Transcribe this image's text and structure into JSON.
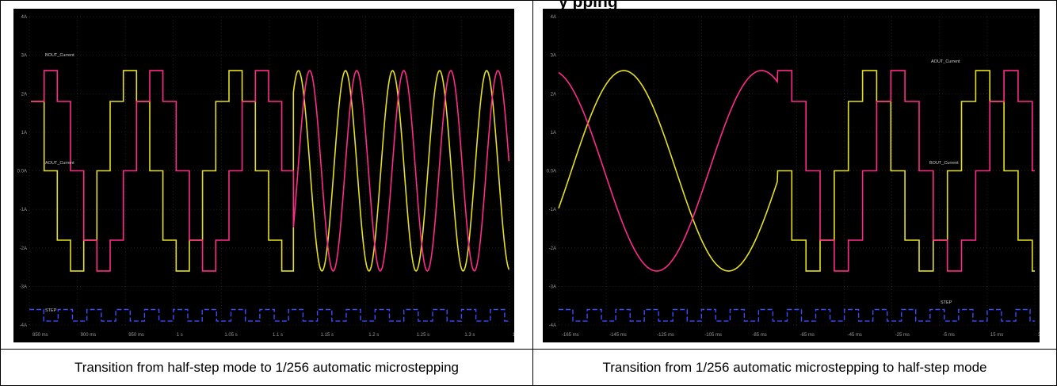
{
  "header_partial": "y                       pping",
  "panels": [
    {
      "id": "left",
      "caption": "Transition from half-step mode to 1/256 automatic microstepping",
      "y_ticks": [
        "4A",
        "3A",
        "2A",
        "1A",
        "0.0A",
        "-1A",
        "-2A",
        "-3A",
        "-4A"
      ],
      "x_ticks": [
        "850 ms",
        "900 ms",
        "950 ms",
        "1 s",
        "1.05 s",
        "1.1 s",
        "1.15 s",
        "1.2 s",
        "1.25 s",
        "1.3 s",
        "1.35 s"
      ],
      "trace_labels": {
        "b": "BOUT_Current",
        "a": "AOUT_Current",
        "step": "STEP"
      },
      "colors": {
        "pink": "#ff2a8a",
        "yellow": "#e6e01e",
        "blue": "#3a4cff",
        "grid": "#3a3a3a"
      }
    },
    {
      "id": "right",
      "caption": "Transition from 1/256 automatic microstepping to half-step mode",
      "y_ticks": [
        "4A",
        "3A",
        "2A",
        "1A",
        "0.0A",
        "-1A",
        "-2A",
        "-3A",
        "-4A"
      ],
      "x_ticks": [
        "-165 ms",
        "-145 ms",
        "-125 ms",
        "-105 ms",
        "-85 ms",
        "-65 ms",
        "-45 ms",
        "-25 ms",
        "-5 ms",
        "15 ms",
        "35 ms"
      ],
      "trace_labels": {
        "a": "AOUT_Current",
        "b": "BOUT_Current",
        "step": "STEP"
      },
      "colors": {
        "pink": "#ff2a8a",
        "yellow": "#e6e01e",
        "blue": "#3a4cff",
        "grid": "#3a3a3a"
      }
    }
  ]
}
